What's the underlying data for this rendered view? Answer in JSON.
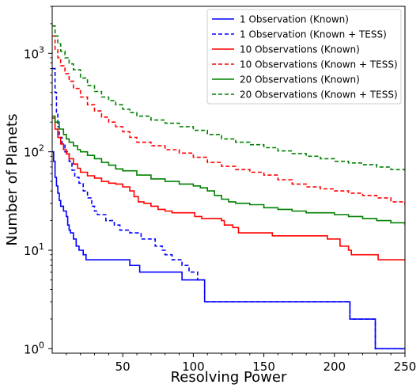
{
  "chart_data": {
    "type": "line",
    "title": "",
    "xlabel": "Resolving Power",
    "ylabel": "Number of Planets",
    "xlim": [
      0,
      250
    ],
    "ylim": [
      0.9,
      3000
    ],
    "yscale": "log",
    "grid": false,
    "legend_position": "top-right",
    "x_ticks": [
      50,
      100,
      150,
      200,
      250
    ],
    "x_tick_labels": [
      "50",
      "100",
      "150",
      "200",
      "250"
    ],
    "y_ticks": [
      1,
      10,
      100,
      1000
    ],
    "y_tick_base": "10",
    "y_tick_exponents": [
      "0",
      "1",
      "2",
      "3"
    ],
    "series": [
      {
        "name": "1 Observation (Known)",
        "color": "#0000ff",
        "dash": "solid",
        "points": [
          [
            0,
            100
          ],
          [
            1,
            80
          ],
          [
            2,
            55
          ],
          [
            3,
            45
          ],
          [
            4,
            38
          ],
          [
            5,
            32
          ],
          [
            6,
            28
          ],
          [
            8,
            25
          ],
          [
            10,
            22
          ],
          [
            11,
            18
          ],
          [
            12,
            16
          ],
          [
            13,
            15
          ],
          [
            15,
            13
          ],
          [
            17,
            11
          ],
          [
            19,
            10
          ],
          [
            22,
            9
          ],
          [
            24,
            8
          ],
          [
            55,
            8
          ],
          [
            55,
            7
          ],
          [
            60,
            7
          ],
          [
            62,
            6
          ],
          [
            90,
            6
          ],
          [
            92,
            5
          ],
          [
            107,
            5
          ],
          [
            108,
            3
          ],
          [
            210,
            3
          ],
          [
            211,
            2
          ],
          [
            228,
            2
          ],
          [
            229,
            1
          ],
          [
            250,
            1
          ]
        ],
        "step": true
      },
      {
        "name": "1 Observation (Known + TESS)",
        "color": "#0000ff",
        "dash": "dashed",
        "points": [
          [
            0,
            700
          ],
          [
            2,
            400
          ],
          [
            3,
            250
          ],
          [
            4,
            180
          ],
          [
            5,
            140
          ],
          [
            7,
            120
          ],
          [
            9,
            100
          ],
          [
            12,
            80
          ],
          [
            14,
            65
          ],
          [
            16,
            55
          ],
          [
            19,
            48
          ],
          [
            22,
            40
          ],
          [
            25,
            34
          ],
          [
            28,
            28
          ],
          [
            30,
            25
          ],
          [
            32,
            23
          ],
          [
            37,
            23
          ],
          [
            38,
            20
          ],
          [
            42,
            20
          ],
          [
            44,
            18
          ],
          [
            48,
            16
          ],
          [
            55,
            15
          ],
          [
            63,
            13
          ],
          [
            72,
            13
          ],
          [
            73,
            11
          ],
          [
            78,
            10
          ],
          [
            80,
            9
          ],
          [
            85,
            8
          ],
          [
            90,
            8
          ],
          [
            92,
            7
          ],
          [
            96,
            7
          ],
          [
            97,
            6
          ],
          [
            100,
            6
          ],
          [
            103,
            5
          ],
          [
            106,
            5
          ],
          [
            108,
            3
          ],
          [
            210,
            3
          ],
          [
            211,
            2
          ],
          [
            228,
            2
          ],
          [
            229,
            1
          ],
          [
            250,
            1
          ]
        ],
        "step": true
      },
      {
        "name": "10 Observations (Known)",
        "color": "#ff0000",
        "dash": "solid",
        "points": [
          [
            0,
            220
          ],
          [
            2,
            170
          ],
          [
            4,
            140
          ],
          [
            6,
            120
          ],
          [
            8,
            105
          ],
          [
            10,
            95
          ],
          [
            12,
            85
          ],
          [
            15,
            75
          ],
          [
            18,
            68
          ],
          [
            20,
            62
          ],
          [
            25,
            57
          ],
          [
            30,
            54
          ],
          [
            35,
            50
          ],
          [
            40,
            48
          ],
          [
            45,
            47
          ],
          [
            50,
            44
          ],
          [
            55,
            40
          ],
          [
            58,
            35
          ],
          [
            61,
            31
          ],
          [
            65,
            30
          ],
          [
            70,
            28
          ],
          [
            75,
            26
          ],
          [
            80,
            25
          ],
          [
            85,
            24
          ],
          [
            100,
            24
          ],
          [
            101,
            22
          ],
          [
            105,
            22
          ],
          [
            106,
            21
          ],
          [
            120,
            20
          ],
          [
            122,
            18
          ],
          [
            128,
            17
          ],
          [
            132,
            15
          ],
          [
            155,
            15
          ],
          [
            156,
            14
          ],
          [
            192,
            14
          ],
          [
            195,
            13
          ],
          [
            203,
            13
          ],
          [
            204,
            11
          ],
          [
            210,
            10
          ],
          [
            212,
            9
          ],
          [
            230,
            9
          ],
          [
            231,
            8
          ],
          [
            250,
            8
          ]
        ],
        "step": true
      },
      {
        "name": "10 Observations (Known + TESS)",
        "color": "#ff0000",
        "dash": "dashed",
        "points": [
          [
            0,
            1500
          ],
          [
            2,
            1100
          ],
          [
            4,
            900
          ],
          [
            6,
            750
          ],
          [
            9,
            620
          ],
          [
            12,
            520
          ],
          [
            15,
            440
          ],
          [
            20,
            360
          ],
          [
            25,
            300
          ],
          [
            30,
            260
          ],
          [
            35,
            225
          ],
          [
            40,
            200
          ],
          [
            45,
            180
          ],
          [
            50,
            160
          ],
          [
            55,
            140
          ],
          [
            60,
            125
          ],
          [
            70,
            115
          ],
          [
            80,
            105
          ],
          [
            90,
            97
          ],
          [
            100,
            88
          ],
          [
            110,
            78
          ],
          [
            120,
            71
          ],
          [
            130,
            66
          ],
          [
            140,
            62
          ],
          [
            150,
            58
          ],
          [
            160,
            52
          ],
          [
            170,
            47
          ],
          [
            180,
            44
          ],
          [
            190,
            42
          ],
          [
            200,
            40
          ],
          [
            210,
            38
          ],
          [
            220,
            36
          ],
          [
            230,
            34
          ],
          [
            240,
            31
          ],
          [
            250,
            29
          ]
        ],
        "step": true
      },
      {
        "name": "20 Observations (Known)",
        "color": "#008000",
        "dash": "solid",
        "points": [
          [
            0,
            230
          ],
          [
            2,
            200
          ],
          [
            5,
            170
          ],
          [
            8,
            150
          ],
          [
            10,
            135
          ],
          [
            12,
            125
          ],
          [
            15,
            115
          ],
          [
            18,
            105
          ],
          [
            20,
            100
          ],
          [
            25,
            92
          ],
          [
            30,
            85
          ],
          [
            35,
            78
          ],
          [
            40,
            73
          ],
          [
            45,
            67
          ],
          [
            50,
            64
          ],
          [
            60,
            58
          ],
          [
            70,
            53
          ],
          [
            80,
            50
          ],
          [
            90,
            47
          ],
          [
            100,
            45
          ],
          [
            105,
            43
          ],
          [
            110,
            40
          ],
          [
            115,
            36
          ],
          [
            120,
            33
          ],
          [
            125,
            31
          ],
          [
            130,
            30
          ],
          [
            140,
            29
          ],
          [
            150,
            27
          ],
          [
            160,
            26
          ],
          [
            170,
            25
          ],
          [
            180,
            24
          ],
          [
            200,
            23
          ],
          [
            210,
            22
          ],
          [
            220,
            21
          ],
          [
            230,
            20
          ],
          [
            240,
            19
          ],
          [
            250,
            18
          ]
        ],
        "step": true
      },
      {
        "name": "20 Observations (Known + TESS)",
        "color": "#008000",
        "dash": "dashed",
        "points": [
          [
            0,
            1900
          ],
          [
            2,
            1500
          ],
          [
            4,
            1250
          ],
          [
            6,
            1050
          ],
          [
            9,
            900
          ],
          [
            12,
            780
          ],
          [
            15,
            680
          ],
          [
            20,
            560
          ],
          [
            25,
            470
          ],
          [
            30,
            410
          ],
          [
            35,
            360
          ],
          [
            40,
            330
          ],
          [
            45,
            300
          ],
          [
            50,
            270
          ],
          [
            55,
            250
          ],
          [
            60,
            230
          ],
          [
            70,
            210
          ],
          [
            80,
            195
          ],
          [
            90,
            180
          ],
          [
            100,
            165
          ],
          [
            110,
            150
          ],
          [
            120,
            135
          ],
          [
            130,
            125
          ],
          [
            140,
            118
          ],
          [
            150,
            110
          ],
          [
            160,
            102
          ],
          [
            170,
            96
          ],
          [
            180,
            90
          ],
          [
            190,
            85
          ],
          [
            200,
            80
          ],
          [
            210,
            77
          ],
          [
            220,
            74
          ],
          [
            230,
            70
          ],
          [
            240,
            66
          ],
          [
            250,
            62
          ]
        ],
        "step": true
      }
    ]
  }
}
